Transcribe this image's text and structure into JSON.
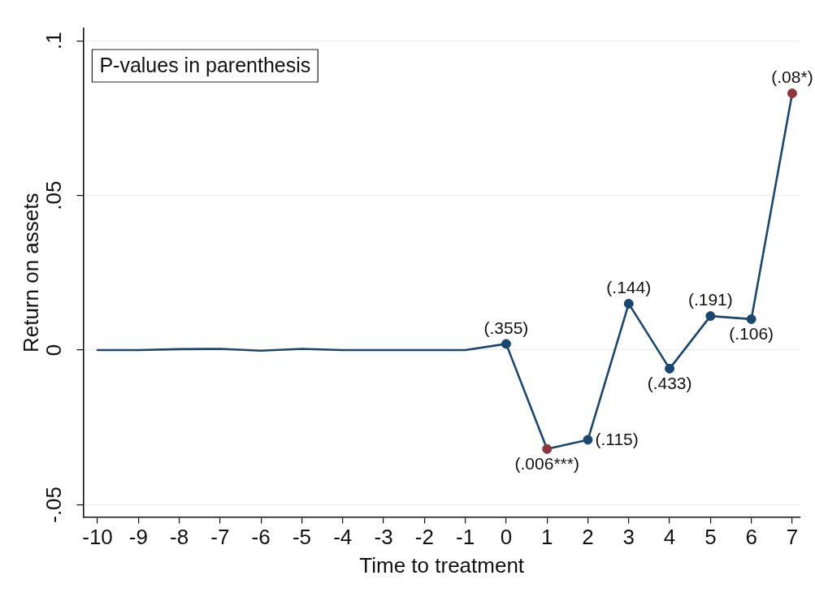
{
  "chart_data": {
    "type": "line",
    "xlabel": "Time to treatment",
    "ylabel": "Return on assets",
    "annotations": [
      "P-values in parenthesis",
      {
        "text": "(.355)",
        "x": 0,
        "y": 0.002
      },
      {
        "text": "(.006***)",
        "x": 1,
        "y": -0.032
      },
      {
        "text": "(.115)",
        "x": 2,
        "y": -0.029
      },
      {
        "text": "(.144)",
        "x": 3,
        "y": 0.015
      },
      {
        "text": "(.433)",
        "x": 4,
        "y": -0.006
      },
      {
        "text": "(.191)",
        "x": 5,
        "y": 0.011
      },
      {
        "text": "(.106)",
        "x": 6,
        "y": 0.01
      },
      {
        "text": "(.08*)",
        "x": 7,
        "y": 0.083
      }
    ],
    "series": [
      {
        "color": "#1a476f",
        "marker": "none",
        "x": [
          -10,
          -9,
          -8,
          -7,
          -6,
          -5,
          -4,
          -3,
          -2,
          -1,
          0
        ],
        "values": [
          0,
          0,
          0.0003,
          0.0004,
          -0.0002,
          0.0004,
          0,
          0,
          0,
          0,
          0.002
        ]
      },
      {
        "color": "#1a476f",
        "marker": "circle",
        "x": [
          0,
          1,
          2,
          3,
          4,
          5,
          6,
          7
        ],
        "values": [
          0.002,
          -0.032,
          -0.029,
          0.015,
          -0.006,
          0.011,
          0.01,
          0.083
        ],
        "colors": [
          "#1a476f",
          "#90353b",
          "#1a476f",
          "#1a476f",
          "#1a476f",
          "#1a476f",
          "#1a476f",
          "#90353b"
        ]
      }
    ],
    "xlim": [
      -10.35,
      7.2
    ],
    "xticks": [
      -10,
      -9,
      -8,
      -7,
      -6,
      -5,
      -4,
      -3,
      -2,
      -1,
      0,
      1,
      2,
      3,
      4,
      5,
      6,
      7
    ],
    "ylim": [
      -0.054,
      0.104
    ],
    "yticks": [
      {
        "value": -0.05,
        "label": "-.05"
      },
      0,
      {
        "value": 0.05,
        "label": ".05"
      },
      {
        "value": 0.1,
        "label": ".1"
      }
    ],
    "grid": "y"
  }
}
